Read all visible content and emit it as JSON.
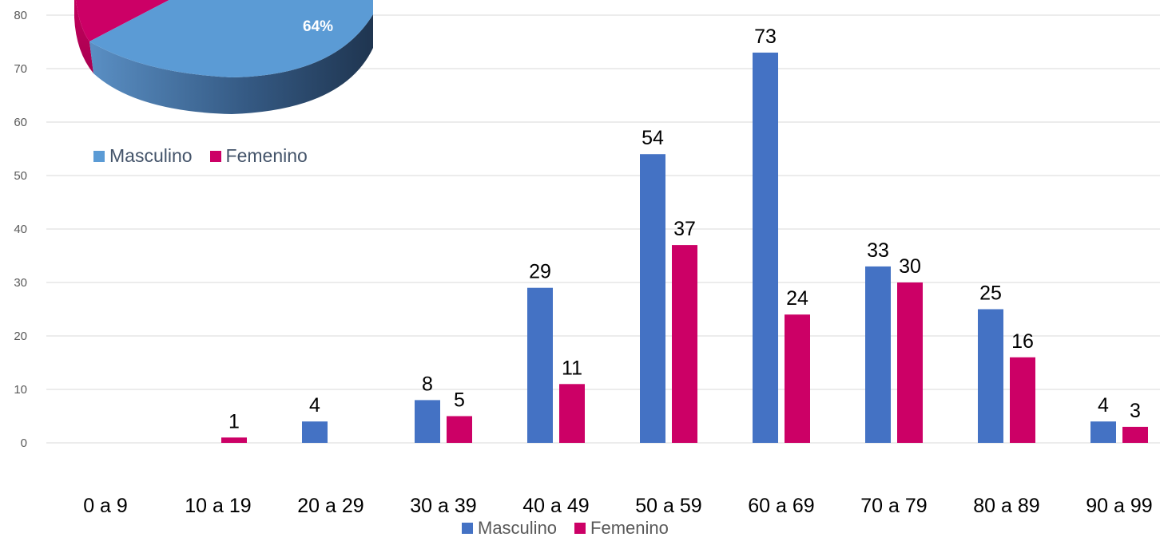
{
  "chart_data": [
    {
      "type": "bar",
      "categories": [
        "0 a 9",
        "10 a 19",
        "20 a 29",
        "30 a 39",
        "40 a 49",
        "50 a 59",
        "60 a 69",
        "70 a 79",
        "80 a 89",
        "90 a 99"
      ],
      "series": [
        {
          "name": "Masculino",
          "color": "#4472c4",
          "values": [
            0,
            0,
            4,
            8,
            29,
            54,
            73,
            33,
            25,
            4
          ],
          "labels": [
            "",
            "",
            "4",
            "8",
            "29",
            "54",
            "73",
            "33",
            "25",
            "4"
          ]
        },
        {
          "name": "Femenino",
          "color": "#cc0066",
          "values": [
            0,
            1,
            0,
            5,
            11,
            37,
            24,
            30,
            16,
            3
          ],
          "labels": [
            "",
            "1",
            "",
            "5",
            "11",
            "37",
            "24",
            "30",
            "16",
            "3"
          ]
        }
      ],
      "yticks": [
        "0",
        "10",
        "20",
        "30",
        "40",
        "50",
        "60",
        "70",
        "80"
      ],
      "ylim": [
        0,
        80
      ],
      "grid": true,
      "legend_position": "bottom"
    },
    {
      "type": "pie",
      "style": "3d",
      "slices": [
        {
          "name": "Masculino",
          "percent": 64,
          "label": "64%",
          "color": "#5b9bd5"
        },
        {
          "name": "Femenino",
          "percent": 36,
          "label": "",
          "color": "#cc0066"
        }
      ],
      "legend_position": "bottom"
    }
  ]
}
